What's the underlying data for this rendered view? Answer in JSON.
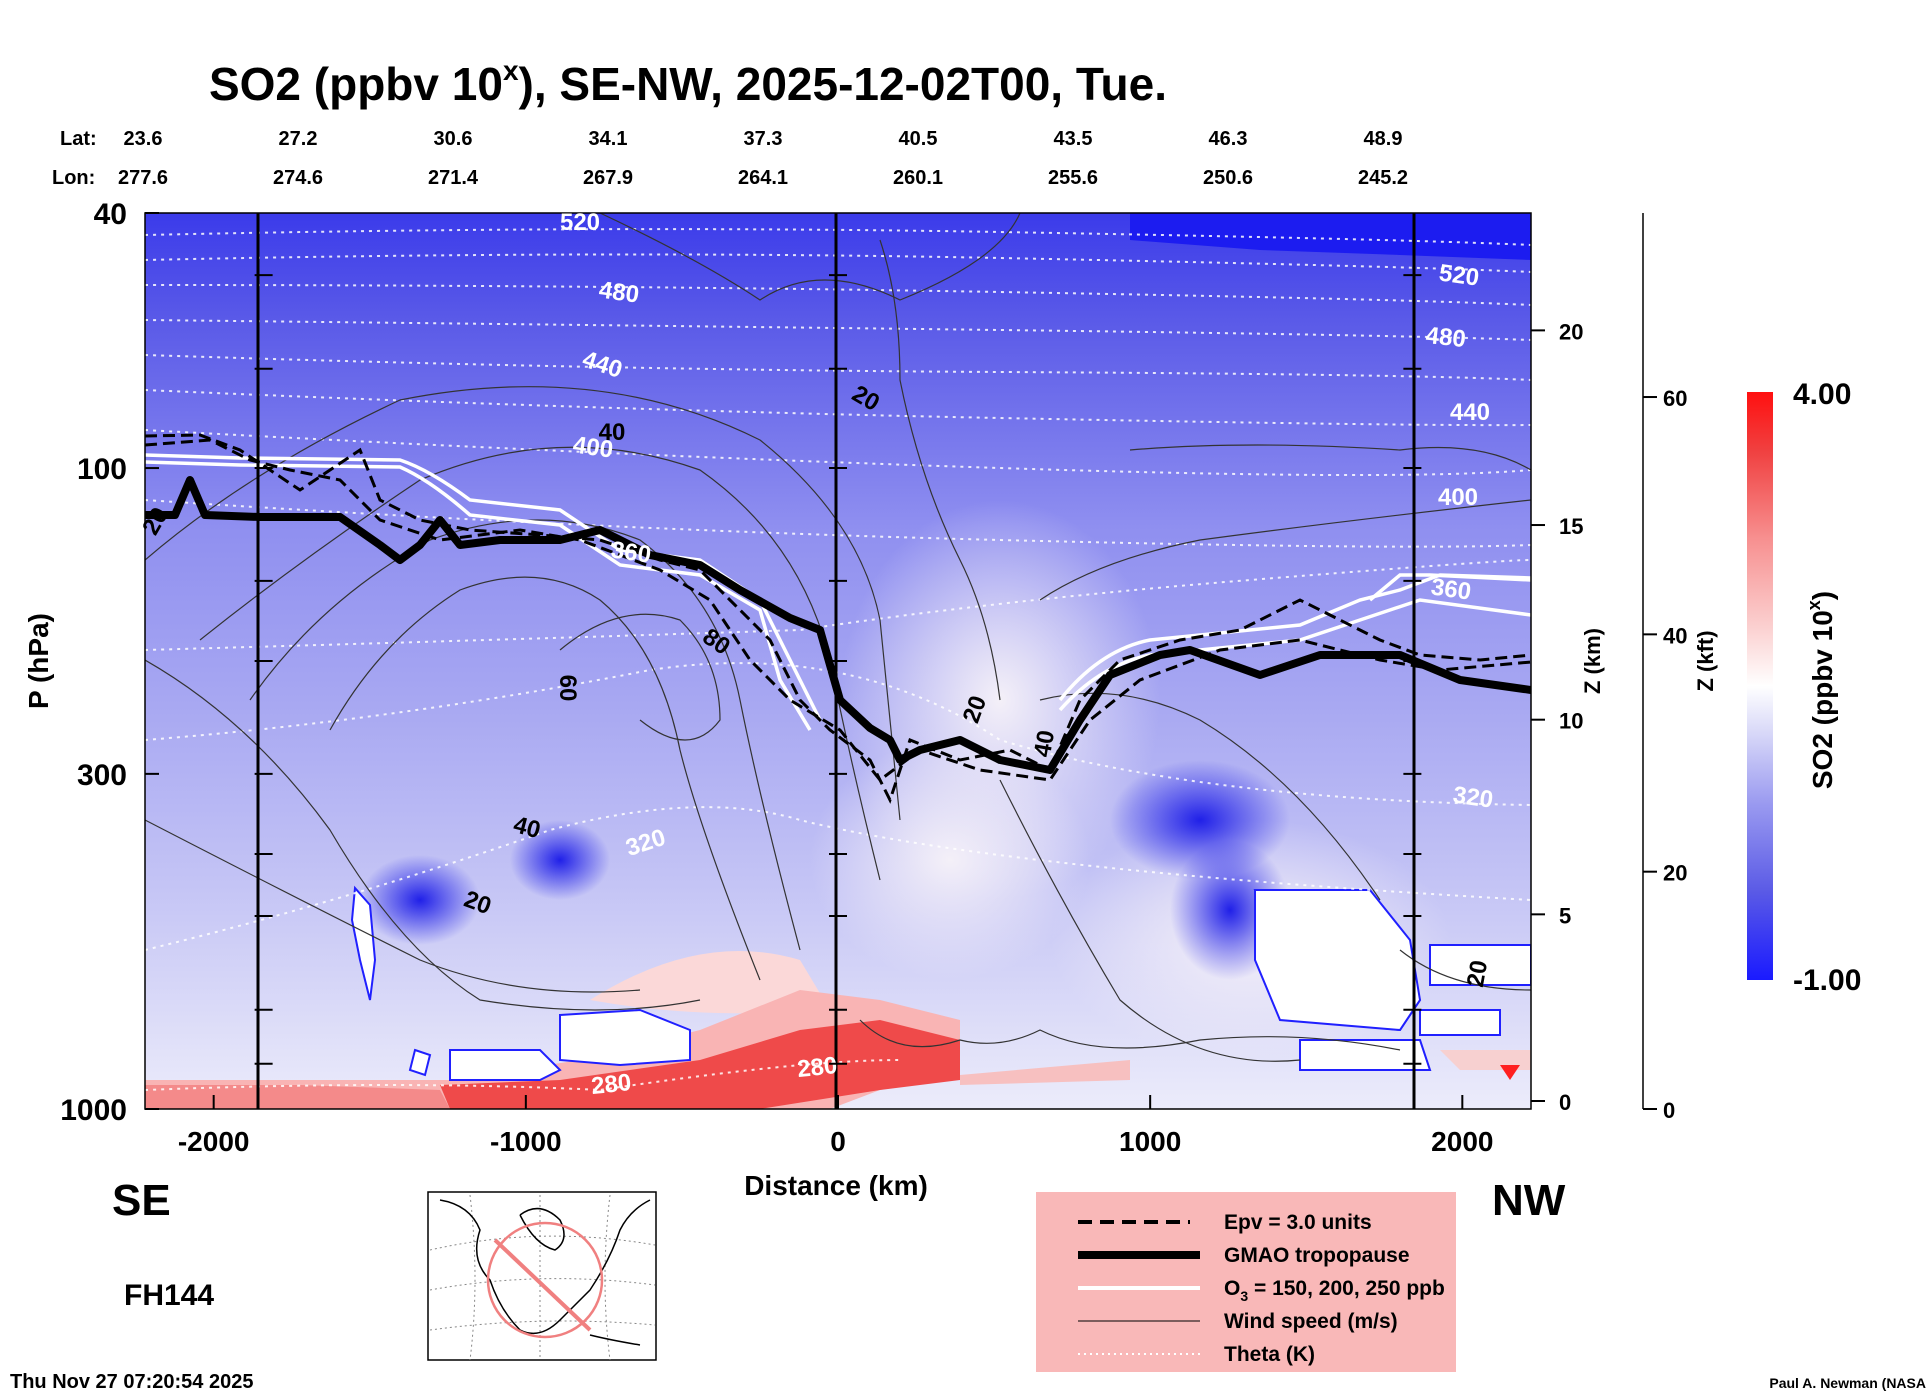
{
  "chart_data": {
    "type": "heatmap",
    "title": "SO2 (ppbv 10",
    "title_superscript": "x",
    "title_suffix": "), SE-NW, 2025-12-02T00, Tue.",
    "lat_label": "Lat:",
    "lon_label": "Lon:",
    "lat_ticks": [
      "23.6",
      "27.2",
      "30.6",
      "34.1",
      "37.3",
      "40.5",
      "43.5",
      "46.3",
      "48.9"
    ],
    "lon_ticks": [
      "277.6",
      "274.6",
      "271.4",
      "267.9",
      "264.1",
      "260.1",
      "255.6",
      "250.6",
      "245.2"
    ],
    "xlabel": "Distance (km)",
    "x_ticks": [
      -2000,
      -1000,
      0,
      1000,
      2000
    ],
    "x_tick_labels": [
      "-2000",
      "-1000",
      "0",
      "1000",
      "2000"
    ],
    "xlim": [
      -2220,
      2220
    ],
    "ylabel": "P (hPa)",
    "y_ticks": [
      40,
      100,
      300,
      1000
    ],
    "y_tick_labels": [
      "40",
      "100",
      "300",
      "1000"
    ],
    "ylim": [
      1000,
      40
    ],
    "y_scale": "log",
    "z_km_label": "Z (km)",
    "z_km_ticks": [
      0,
      5,
      10,
      15,
      20
    ],
    "z_km_tick_labels": [
      "0",
      "5",
      "10",
      "15",
      "20"
    ],
    "z_kft_label": "Z (kft)",
    "z_kft_ticks": [
      0,
      20,
      40,
      60
    ],
    "z_kft_tick_labels": [
      "0",
      "20",
      "40",
      "60"
    ],
    "direction_left": "SE",
    "direction_right": "NW",
    "forecast_hour": "FH144",
    "colorbar": {
      "label": "SO2 (ppbv 10",
      "label_superscript": "x",
      "label_suffix": ")",
      "max_label": "4.00",
      "min_label": "-1.00",
      "colors": [
        "#1a1aff",
        "#5a5ae6",
        "#9a9af0",
        "#d8d8f8",
        "#ffffff",
        "#fbd0d0",
        "#f79090",
        "#f04040",
        "#ff1010"
      ]
    },
    "theta_labels": [
      "520",
      "480",
      "440",
      "400",
      "360",
      "320",
      "280",
      "280",
      "520",
      "480",
      "440",
      "400",
      "360",
      "320"
    ],
    "wind_labels": [
      "20",
      "20",
      "40",
      "60",
      "80",
      "40",
      "20",
      "20",
      "40",
      "20"
    ],
    "legend": {
      "items": [
        {
          "label": "Epv = 3.0 units",
          "style": "dashed"
        },
        {
          "label": "GMAO tropopause",
          "style": "thick"
        },
        {
          "label": "O",
          "sub": "3",
          "suffix": " = 150, 200, 250 ppb",
          "style": "white"
        },
        {
          "label": "Wind speed (m/s)",
          "style": "thin"
        },
        {
          "label": "Theta (K)",
          "style": "dotted"
        }
      ],
      "position": "bottom-center"
    },
    "timestamp": "Thu Nov 27 07:20:54 2025",
    "credit": "Paul A. Newman (NASA"
  }
}
